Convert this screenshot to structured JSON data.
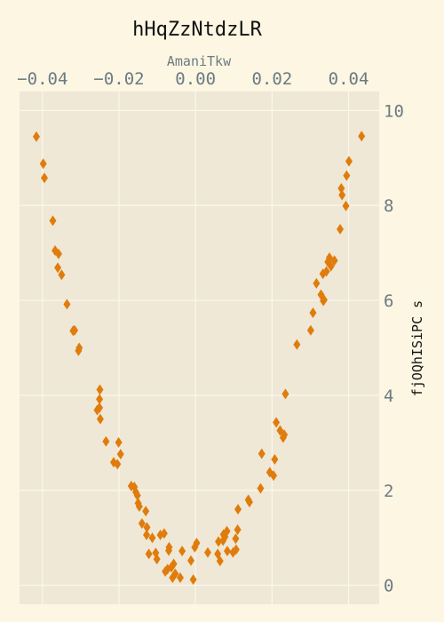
{
  "chart_data": {
    "type": "scatter",
    "title": "hHqZzNtdzLR",
    "xlabel": "AmaniTkw",
    "ylabel": "fjOQhISiPC s",
    "xlim": [
      -0.046,
      0.048
    ],
    "ylim": [
      -0.4,
      10.4
    ],
    "x_ticks": [
      -0.04,
      -0.02,
      0.0,
      0.02,
      0.04
    ],
    "x_tick_labels": [
      "−0.04",
      "−0.02",
      "0.00",
      "0.02",
      "0.04"
    ],
    "y_ticks": [
      0,
      2,
      4,
      6,
      8,
      10
    ],
    "y_tick_labels": [
      "0",
      "2",
      "4",
      "6",
      "8",
      "10"
    ],
    "x_axis_position": "top",
    "y_axis_position": "right",
    "grid": true,
    "legend": "none",
    "colors": {
      "background": "#fdf6e3",
      "plot_background": "#efe8d6",
      "grid": "#fbf7ec",
      "marker": "#e07c0c",
      "tick_text": "#6b7b82",
      "xlabel_text": "#6b7b82",
      "ylabel_text": "#111111",
      "title_text": "#111111"
    },
    "marker": "diamond",
    "series": [
      {
        "x": [
          -0.0416,
          -0.0395,
          -0.0398,
          -0.0373,
          -0.0367,
          -0.036,
          -0.0358,
          -0.035,
          -0.0336,
          -0.032,
          -0.0316,
          -0.0306,
          -0.0304,
          -0.0257,
          -0.025,
          -0.0251,
          -0.0251,
          -0.0249,
          -0.0234,
          -0.0214,
          -0.0204,
          -0.0201,
          -0.0196,
          -0.0168,
          -0.016,
          -0.0156,
          -0.0152,
          -0.015,
          -0.0147,
          -0.014,
          -0.013,
          -0.0128,
          -0.0127,
          -0.0122,
          -0.0113,
          -0.0104,
          -0.0101,
          -0.0092,
          -0.0082,
          -0.0079,
          -0.0073,
          -0.007,
          -0.0069,
          -0.0063,
          -0.006,
          -0.0057,
          -0.0053,
          -0.004,
          -0.0035,
          -0.0012,
          -0.0006,
          -0.0002,
          0.0003,
          0.0032,
          0.0058,
          0.006,
          0.0064,
          0.0072,
          0.0073,
          0.0077,
          0.0082,
          0.0083,
          0.0098,
          0.0105,
          0.0106,
          0.011,
          0.0111,
          0.0138,
          0.0141,
          0.017,
          0.0173,
          0.0194,
          0.0204,
          0.0207,
          0.0211,
          0.0221,
          0.0229,
          0.0232,
          0.0235,
          0.0265,
          0.0301,
          0.0307,
          0.0316,
          0.0328,
          0.0333,
          0.0334,
          0.0336,
          0.0342,
          0.0346,
          0.035,
          0.0354,
          0.0363,
          0.0378,
          0.0381,
          0.0383,
          0.0393,
          0.0395,
          0.0401,
          0.0434
        ],
        "y": [
          9.45,
          8.58,
          8.88,
          7.68,
          7.05,
          6.69,
          6.98,
          6.54,
          5.92,
          5.36,
          5.37,
          4.94,
          5.0,
          3.69,
          4.12,
          3.92,
          3.74,
          3.5,
          3.03,
          2.59,
          2.55,
          3.01,
          2.76,
          2.09,
          2.07,
          1.96,
          1.89,
          1.73,
          1.66,
          1.3,
          1.56,
          1.06,
          1.22,
          0.66,
          1.0,
          0.68,
          0.55,
          1.06,
          1.09,
          0.29,
          0.34,
          0.73,
          0.8,
          0.38,
          0.16,
          0.45,
          0.24,
          0.16,
          0.72,
          0.52,
          0.12,
          0.8,
          0.89,
          0.69,
          0.66,
          0.92,
          0.51,
          0.94,
          1.07,
          1.02,
          1.14,
          0.72,
          0.69,
          0.98,
          0.75,
          1.17,
          1.6,
          1.8,
          1.75,
          2.04,
          2.77,
          2.38,
          2.31,
          2.65,
          3.43,
          3.26,
          3.11,
          3.17,
          4.03,
          5.07,
          5.37,
          5.74,
          6.36,
          6.12,
          6.56,
          5.99,
          6.01,
          6.61,
          6.81,
          6.9,
          6.72,
          6.84,
          7.5,
          8.36,
          8.22,
          7.99,
          8.63,
          8.93,
          9.46
        ]
      }
    ]
  }
}
